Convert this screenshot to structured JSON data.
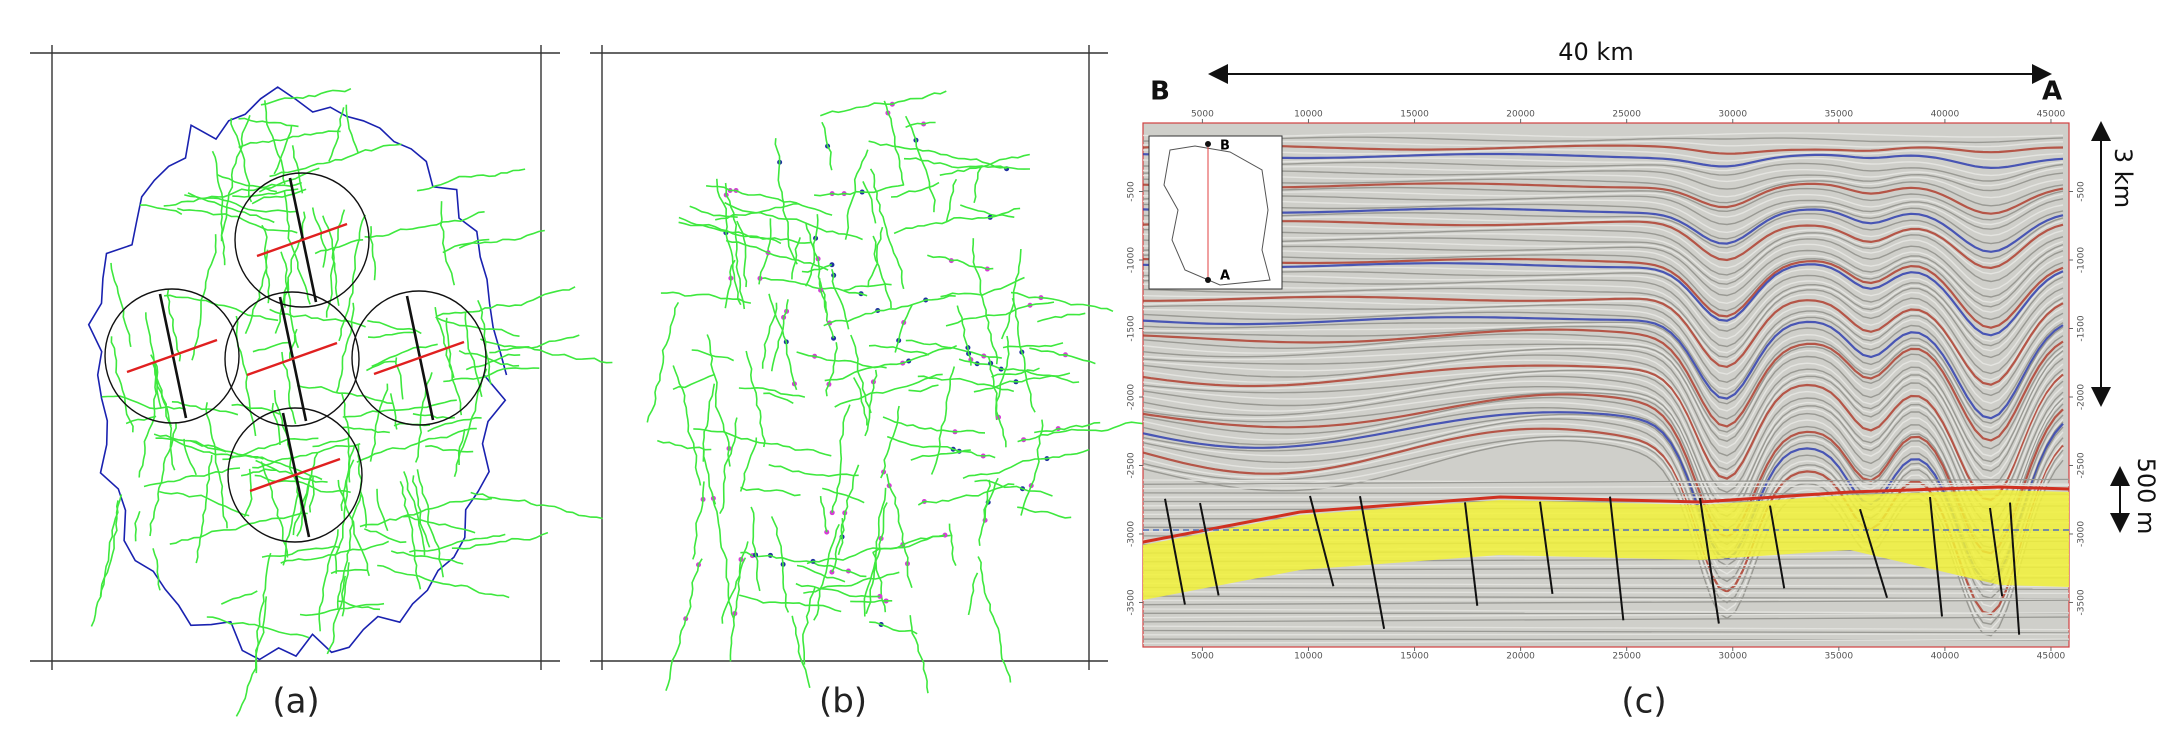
{
  "figure": {
    "panels": [
      {
        "label": "(a)"
      },
      {
        "label": "(b)"
      },
      {
        "label": "(c)"
      }
    ],
    "section": {
      "left_end": "B",
      "right_end": "A",
      "length": "40 km",
      "vertical_scale": "3 km",
      "detail_scale": "500 m",
      "inset": {
        "top": "B",
        "bottom": "A"
      },
      "xlim": [
        2200,
        45850
      ],
      "xticks": [
        5000,
        10000,
        15000,
        20000,
        25000,
        30000,
        35000,
        40000,
        45000
      ],
      "ylim": [
        0,
        -3825
      ],
      "yticks": [
        -500,
        -1000,
        -1500,
        -2000,
        -2500,
        -3000,
        -3500
      ]
    }
  }
}
